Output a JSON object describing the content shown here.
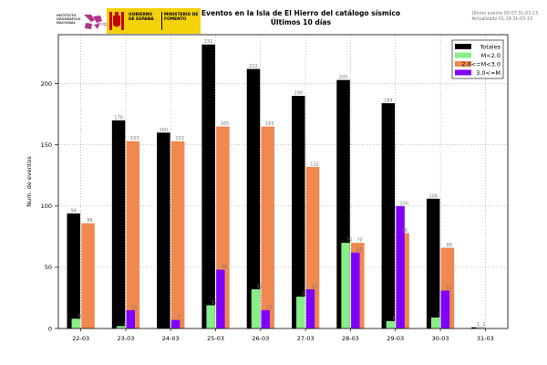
{
  "header": {
    "title_line1": "Eventos en la Isla de El Hierro del catálogo sísmico",
    "title_line2": "Últimos 10 días",
    "stamp_line1": "Último evento 00:07 31-03-13",
    "stamp_line2": "Actualizado   01:19 31-03-13"
  },
  "logos": {
    "ign_text": "INSTITUTO GEOGRÁFICO NACIONAL",
    "ign_sig": "gnig",
    "gob_line1": "GOBIERNO DE ESPAÑA",
    "gob_line2": "MINISTERIO DE FOMENTO"
  },
  "colors": {
    "totales": "#000000",
    "small": "#88ee88",
    "medium": "#f08850",
    "large": "#8000ff",
    "grid": "#888888",
    "ign_mark": "#b0358a",
    "gob_bg": "#f4d20a",
    "crest_red": "#c40000"
  },
  "chart_data": {
    "type": "bar",
    "title": "Eventos en la Isla de El Hierro del catálogo sísmico — Últimos 10 días",
    "xlabel": "",
    "ylabel": "Num. de eventos",
    "ylim": [
      0,
      240
    ],
    "yticks": [
      0,
      50,
      100,
      150,
      200
    ],
    "grid": true,
    "legend_position": "top-right",
    "categories": [
      "22-03",
      "23-03",
      "24-03",
      "25-03",
      "26-03",
      "27-03",
      "28-03",
      "29-03",
      "30-03",
      "31-03"
    ],
    "series": [
      {
        "name": "Totales",
        "color_key": "totales",
        "values": [
          94,
          170,
          160,
          232,
          212,
          190,
          203,
          184,
          106,
          1
        ]
      },
      {
        "name": "M<2.0",
        "color_key": "small",
        "values": [
          8,
          2,
          0,
          19,
          32,
          26,
          70,
          6,
          9,
          1
        ]
      },
      {
        "name": "2.0<=M<3.0",
        "color_key": "medium",
        "values": [
          86,
          153,
          153,
          165,
          165,
          132,
          70,
          78,
          66,
          0
        ]
      },
      {
        "name": "3.0<=M",
        "color_key": "large",
        "values": [
          0,
          15,
          7,
          48,
          15,
          32,
          62,
          100,
          31,
          0
        ]
      }
    ]
  }
}
